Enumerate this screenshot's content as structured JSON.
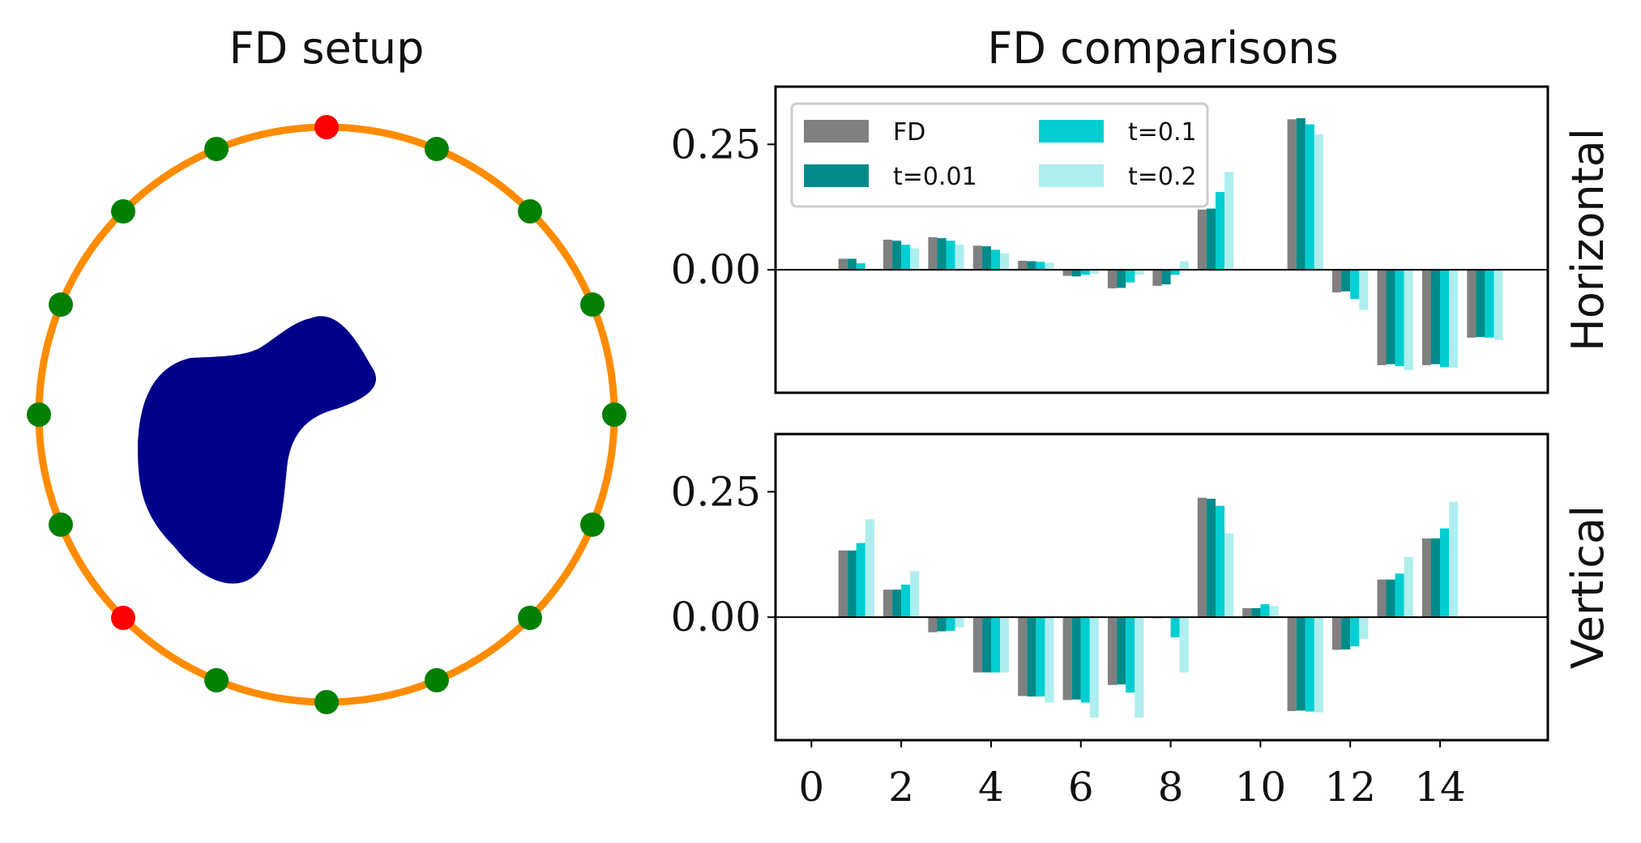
{
  "chart_data": [
    {
      "type": "diagram",
      "title": "FD setup",
      "sensors": {
        "count": 16,
        "highlighted_indices": [
          0,
          10
        ],
        "ring_color": "#ff8c00",
        "sensor_color": "#008000",
        "highlight_color": "#ff0000"
      },
      "inclusion_color": "#00008b"
    },
    {
      "type": "bar",
      "title": "FD comparisons",
      "x": [
        0,
        1,
        2,
        3,
        4,
        5,
        6,
        7,
        8,
        9,
        10,
        11,
        12,
        13,
        14,
        15
      ],
      "xticks": [
        0,
        2,
        4,
        6,
        8,
        10,
        12,
        14
      ],
      "yticks": [
        0.0,
        0.25
      ],
      "ytick_labels": [
        "0.00",
        "0.25"
      ],
      "legend": {
        "location": "upper-left",
        "entries": [
          "FD",
          "t=0.01",
          "t=0.1",
          "t=0.2"
        ]
      },
      "colors": {
        "FD": "#808080",
        "t=0.01": "#008b8b",
        "t=0.1": "#00ced1",
        "t=0.2": "#afeeee"
      },
      "panels": [
        {
          "row_label": "Horizontal",
          "ylim": [
            -0.245,
            0.365
          ],
          "series": [
            {
              "name": "FD",
              "values": [
                0,
                0.022,
                0.06,
                0.065,
                0.048,
                0.018,
                -0.012,
                -0.037,
                -0.032,
                0.12,
                0,
                0.3,
                -0.045,
                -0.19,
                -0.19,
                -0.135
              ]
            },
            {
              "name": "t=0.01",
              "values": [
                0,
                0.022,
                0.058,
                0.063,
                0.047,
                0.017,
                -0.013,
                -0.036,
                -0.029,
                0.122,
                0,
                0.302,
                -0.043,
                -0.188,
                -0.188,
                -0.134
              ]
            },
            {
              "name": "t=0.1",
              "values": [
                0,
                0.013,
                0.05,
                0.058,
                0.04,
                0.016,
                -0.01,
                -0.025,
                -0.01,
                0.155,
                0,
                0.29,
                -0.058,
                -0.192,
                -0.194,
                -0.135
              ]
            },
            {
              "name": "t=0.2",
              "values": [
                0,
                0.0,
                0.043,
                0.05,
                0.033,
                0.014,
                -0.008,
                -0.01,
                0.017,
                0.195,
                0,
                0.27,
                -0.08,
                -0.2,
                -0.195,
                -0.14
              ]
            }
          ]
        },
        {
          "row_label": "Vertical",
          "ylim": [
            -0.245,
            0.365
          ],
          "series": [
            {
              "name": "FD",
              "values": [
                0,
                0.133,
                0.055,
                -0.03,
                -0.11,
                -0.157,
                -0.165,
                -0.135,
                -0.002,
                0.238,
                0.018,
                -0.187,
                -0.065,
                0.075,
                0.157,
                0
              ]
            },
            {
              "name": "t=0.01",
              "values": [
                0,
                0.133,
                0.055,
                -0.028,
                -0.11,
                -0.158,
                -0.164,
                -0.134,
                0,
                0.236,
                0.018,
                -0.186,
                -0.064,
                0.075,
                0.157,
                0
              ]
            },
            {
              "name": "t=0.1",
              "values": [
                0,
                0.148,
                0.065,
                -0.027,
                -0.11,
                -0.158,
                -0.17,
                -0.15,
                -0.04,
                0.222,
                0.026,
                -0.188,
                -0.058,
                0.087,
                0.177,
                0
              ]
            },
            {
              "name": "t=0.2",
              "values": [
                0,
                0.195,
                0.092,
                -0.02,
                -0.11,
                -0.17,
                -0.2,
                -0.2,
                -0.11,
                0.167,
                0.022,
                -0.19,
                -0.043,
                0.12,
                0.23,
                0
              ]
            }
          ]
        }
      ]
    }
  ]
}
